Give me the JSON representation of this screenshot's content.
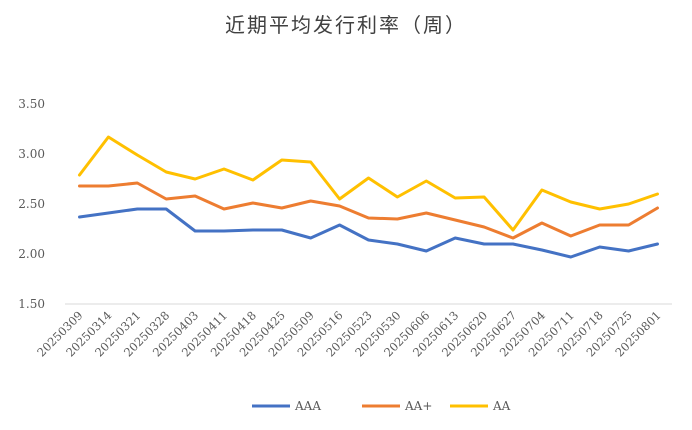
{
  "chart_data": {
    "type": "line",
    "title": "近期平均发行利率（周）",
    "xlabel": "",
    "ylabel": "",
    "ylim": [
      1.5,
      3.5
    ],
    "yticks": [
      "1.50",
      "2.00",
      "2.50",
      "3.00",
      "3.50"
    ],
    "grid": false,
    "legend_position": "bottom",
    "x": [
      "20250309",
      "20250314",
      "20250321",
      "20250328",
      "20250403",
      "20250411",
      "20250418",
      "20250425",
      "20250509",
      "20250516",
      "20250523",
      "20250530",
      "20250606",
      "20250613",
      "20250620",
      "20250627",
      "20250704",
      "20250711",
      "20250718",
      "20250725",
      "20250801"
    ],
    "series": [
      {
        "name": "AAA",
        "color": "#4472C4",
        "values": [
          2.37,
          2.41,
          2.45,
          2.45,
          2.23,
          2.23,
          2.24,
          2.24,
          2.16,
          2.29,
          2.14,
          2.1,
          2.03,
          2.16,
          2.1,
          2.1,
          2.04,
          1.97,
          2.07,
          2.03,
          2.1
        ]
      },
      {
        "name": "AA+",
        "color": "#ED7D31",
        "values": [
          2.68,
          2.68,
          2.71,
          2.55,
          2.58,
          2.45,
          2.51,
          2.46,
          2.53,
          2.48,
          2.36,
          2.35,
          2.41,
          2.34,
          2.27,
          2.16,
          2.31,
          2.18,
          2.29,
          2.29,
          2.46
        ]
      },
      {
        "name": "AA",
        "color": "#FFC000",
        "values": [
          2.79,
          3.17,
          2.99,
          2.82,
          2.75,
          2.85,
          2.74,
          2.94,
          2.92,
          2.55,
          2.76,
          2.57,
          2.73,
          2.56,
          2.57,
          2.24,
          2.64,
          2.52,
          2.45,
          2.5,
          2.6
        ]
      }
    ]
  }
}
